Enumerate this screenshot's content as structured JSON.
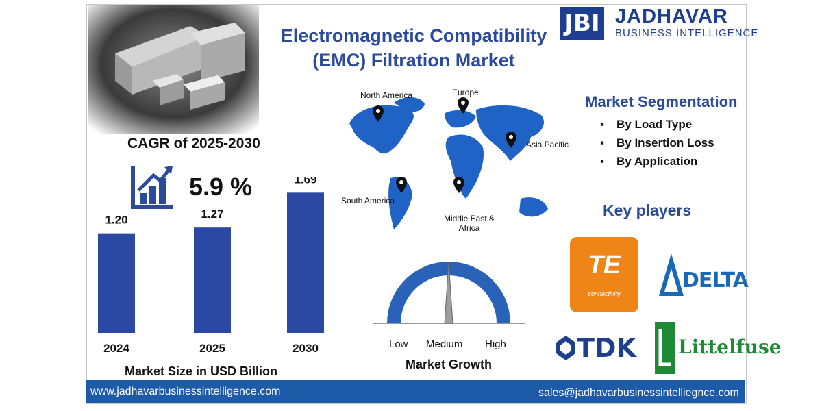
{
  "title": "Electromagnetic Compatibility (EMC) Filtration Market",
  "brand": {
    "mark": "JBI",
    "name": "JADHAVAR",
    "tagline": "BUSINESS INTELLIGENCE"
  },
  "cagr": {
    "label": "CAGR of 2025-2030",
    "value": "5.9 %"
  },
  "chart_data": {
    "type": "bar",
    "categories": [
      "2024",
      "2025",
      "2030"
    ],
    "values": [
      1.2,
      1.27,
      1.69
    ],
    "value_labels": [
      "1.20",
      "1.27",
      "1.69"
    ],
    "xlabel": "Market Size in USD Billion",
    "ylim": [
      0,
      1.8
    ],
    "color": "#2b48a3"
  },
  "regions": [
    "North America",
    "Europe",
    "Asia Pacific",
    "South America",
    "Middle East & Africa"
  ],
  "segmentation": {
    "title": "Market Segmentation",
    "items": [
      "By Load Type",
      "By Insertion Loss",
      "By Application"
    ]
  },
  "growth": {
    "labels": [
      "Low",
      "Medium",
      "High"
    ],
    "caption": "Market Growth",
    "level": "Medium"
  },
  "key_players": {
    "title": "Key players",
    "logos": [
      "TE",
      "connectivity",
      "DELTA",
      "TDK",
      "Littelfuse"
    ]
  },
  "footer": {
    "website": "www.jadhavarbusinessintelligence.com",
    "email": "sales@jadhavarbusinessintelliegnce.com"
  },
  "colors": {
    "primary": "#2c4a9a",
    "bar": "#2b48a3",
    "footer": "#1d5aa8",
    "te": "#f08517",
    "littelfuse": "#1e8a36"
  }
}
